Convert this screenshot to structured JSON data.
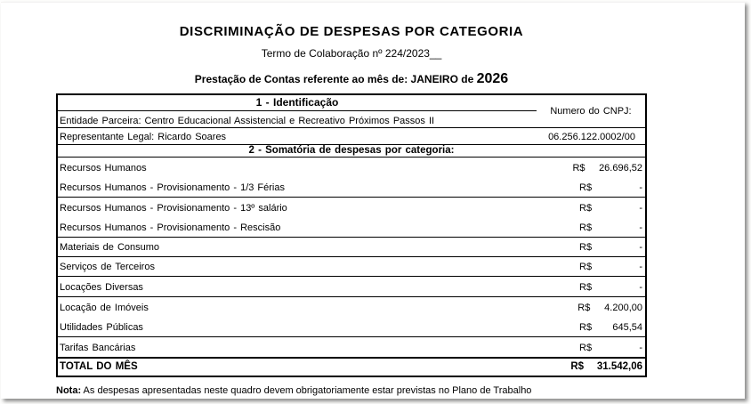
{
  "page": {
    "title": "DISCRIMINAÇÃO DE DESPESAS POR CATEGORIA",
    "subtitle": "Termo de Colaboração nº 224/2023__",
    "period_label": "Prestação de Contas referente ao mês de: JANEIRO de",
    "period_year": "2026",
    "note_label": "Nota:",
    "note_text": " As despesas apresentadas neste quadro devem obrigatoriamente estar previstas no Plano de Trabalho"
  },
  "colors": {
    "text": "#000000",
    "border": "#000000",
    "page_bg": "#ffffff"
  },
  "section1": {
    "header": "1 - Identificação",
    "cnpj_label": "Numero do CNPJ:",
    "cnpj_value": "06.256.122.0002/00",
    "entity": "Entidade Parceira: Centro Educacional Assistencial e Recreativo Próximos Passos II",
    "representative": "Representante Legal: Ricardo Soares"
  },
  "section2": {
    "header": "2 - Somatória de despesas por categoria:",
    "currency": "R$",
    "rows": [
      {
        "label": "Recursos Humanos",
        "value": "26.696,52"
      },
      {
        "label": "Recursos Humanos - Provisionamento - 1/3 Férias",
        "value": "-"
      },
      {
        "label": "Recursos Humanos - Provisionamento - 13º salário",
        "value": "-"
      },
      {
        "label": "Recursos Humanos - Provisionamento - Rescisão",
        "value": "-"
      },
      {
        "label": "Materiais de Consumo",
        "value": "-"
      },
      {
        "label": "Serviços de Terceiros",
        "value": "-"
      },
      {
        "label": "Locações Diversas",
        "value": "-"
      },
      {
        "label": "Locação de Imóveis",
        "value": "4.200,00"
      },
      {
        "label": "Utilidades Públicas",
        "value": "645,54"
      },
      {
        "label": "Tarifas Bancárias",
        "value": "-"
      }
    ],
    "total": {
      "label": "TOTAL DO MÊS",
      "currency": "R$",
      "value": "31.542,06"
    }
  }
}
